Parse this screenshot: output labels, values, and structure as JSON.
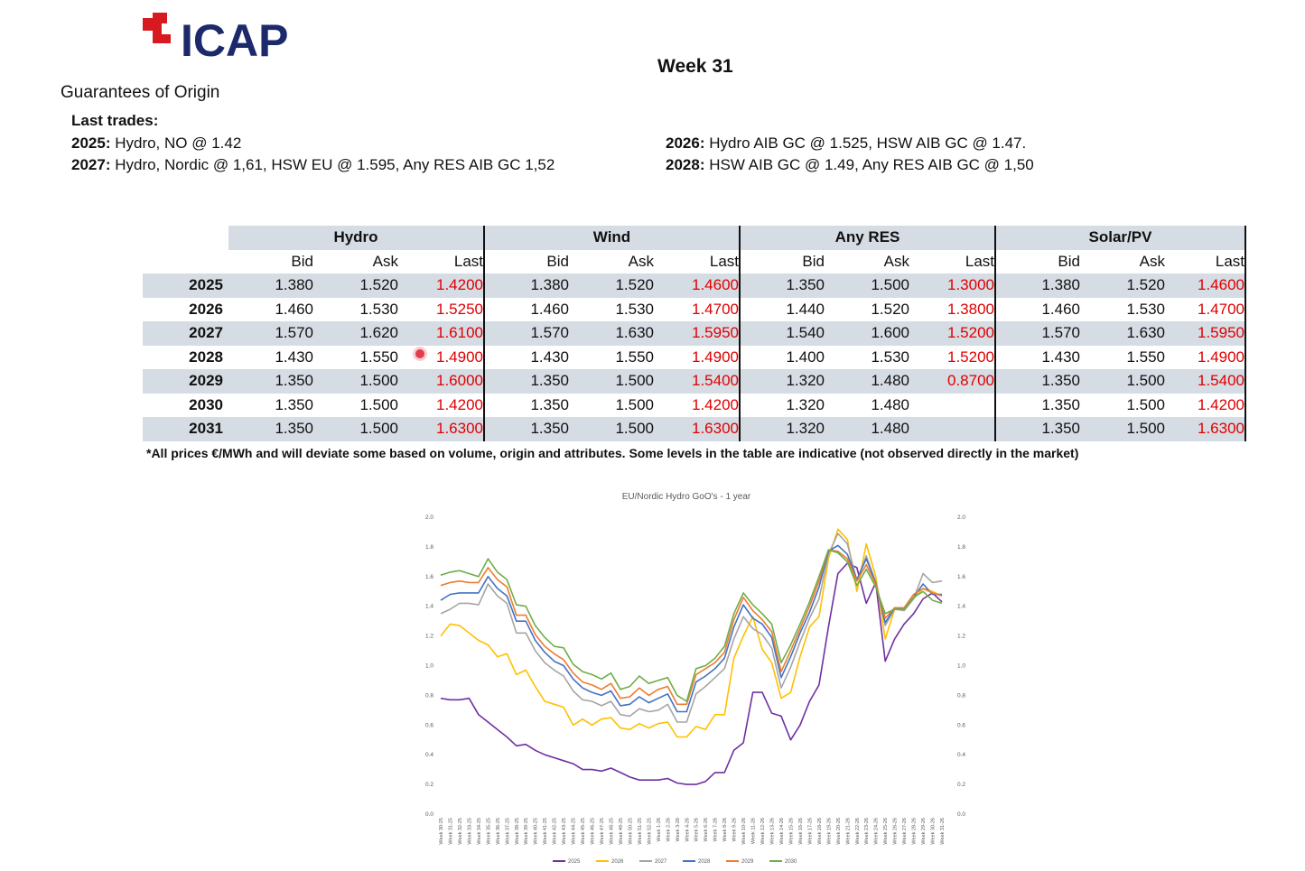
{
  "logo": {
    "text": "ICAP",
    "color": "#1c2a6b",
    "mark_color": "#d71920"
  },
  "header": {
    "week": "Week 31"
  },
  "section_title": "Guarantees of Origin",
  "last_trades": {
    "heading": "Last trades:",
    "items": [
      {
        "year": "2025:",
        "text": " Hydro, NO @ 1.42"
      },
      {
        "year": "2026:",
        "text": " Hydro AIB GC @ 1.525, HSW AIB GC @ 1.47."
      },
      {
        "year": "2027:",
        "text": " Hydro, Nordic @ 1,61, HSW EU @ 1.595, Any RES AIB GC 1,52"
      },
      {
        "year": "2028:",
        "text": " HSW AIB GC @ 1.49, Any RES AIB GC @ 1,50"
      }
    ]
  },
  "table": {
    "groups": [
      "Hydro",
      "Wind",
      "Any RES",
      "Solar/PV"
    ],
    "subheaders": [
      "Bid",
      "Ask",
      "Last"
    ],
    "rows": [
      {
        "year": "2025",
        "vals": [
          "1.380",
          "1.520",
          "1.4200",
          "1.380",
          "1.520",
          "1.4600",
          "1.350",
          "1.500",
          "1.3000",
          "1.380",
          "1.520",
          "1.4600"
        ]
      },
      {
        "year": "2026",
        "vals": [
          "1.460",
          "1.530",
          "1.5250",
          "1.460",
          "1.530",
          "1.4700",
          "1.440",
          "1.520",
          "1.3800",
          "1.460",
          "1.530",
          "1.4700"
        ]
      },
      {
        "year": "2027",
        "vals": [
          "1.570",
          "1.620",
          "1.6100",
          "1.570",
          "1.630",
          "1.5950",
          "1.540",
          "1.600",
          "1.5200",
          "1.570",
          "1.630",
          "1.5950"
        ]
      },
      {
        "year": "2028",
        "vals": [
          "1.430",
          "1.550",
          "1.4900",
          "1.430",
          "1.550",
          "1.4900",
          "1.400",
          "1.530",
          "1.5200",
          "1.430",
          "1.550",
          "1.4900"
        ]
      },
      {
        "year": "2029",
        "vals": [
          "1.350",
          "1.500",
          "1.6000",
          "1.350",
          "1.500",
          "1.5400",
          "1.320",
          "1.480",
          "0.8700",
          "1.350",
          "1.500",
          "1.5400"
        ]
      },
      {
        "year": "2030",
        "vals": [
          "1.350",
          "1.500",
          "1.4200",
          "1.350",
          "1.500",
          "1.4200",
          "1.320",
          "1.480",
          "",
          "1.350",
          "1.500",
          "1.4200"
        ]
      },
      {
        "year": "2031",
        "vals": [
          "1.350",
          "1.500",
          "1.6300",
          "1.350",
          "1.500",
          "1.6300",
          "1.320",
          "1.480",
          "",
          "1.350",
          "1.500",
          "1.6300"
        ]
      }
    ]
  },
  "footnote": "*All prices €/MWh and will deviate some based on volume, origin and attributes. Some levels in the table are indicative (not observed directly in the market)",
  "chart_data": {
    "type": "line",
    "title": "EU/Nordic Hydro GoO's - 1 year",
    "ylim": [
      0.0,
      2.0
    ],
    "yticks": [
      "0.0",
      "0.2",
      "0.4",
      "0.6",
      "0.8",
      "1.0",
      "1.2",
      "1.4",
      "1.6",
      "1.8",
      "2.0"
    ],
    "grid": false,
    "legend": "bottom",
    "x": [
      "Week 30-25",
      "Week 31-25",
      "Week 32-25",
      "Week 33-25",
      "Week 34-25",
      "Week 35-25",
      "Week 36-25",
      "Week 37-25",
      "Week 38-25",
      "Week 39-25",
      "Week 40-25",
      "Week 41-25",
      "Week 42-25",
      "Week 43-25",
      "Week 44-25",
      "Week 45-25",
      "Week 46-25",
      "Week 47-25",
      "Week 48-25",
      "Week 49-25",
      "Week 50-25",
      "Week 51-25",
      "Week 52-25",
      "Week 1-26",
      "Week 2-26",
      "Week 3-26",
      "Week 4-26",
      "Week 5-26",
      "Week 6-26",
      "Week 7-26",
      "Week 8-26",
      "Week 9-26",
      "Week 10-26",
      "Week 11-26",
      "Week 12-26",
      "Week 13-26",
      "Week 14-26",
      "Week 15-26",
      "Week 16-26",
      "Week 17-26",
      "Week 18-26",
      "Week 19-26",
      "Week 20-26",
      "Week 21-26",
      "Week 22-26",
      "Week 23-26",
      "Week 24-26",
      "Week 25-26",
      "Week 26-26",
      "Week 27-26",
      "Week 28-26",
      "Week 29-26",
      "Week 30-26",
      "Week 31-26"
    ],
    "series": [
      {
        "name": "2025",
        "color": "#7030a0",
        "values": [
          0.78,
          0.77,
          0.77,
          0.78,
          0.67,
          0.62,
          0.57,
          0.52,
          0.46,
          0.47,
          0.43,
          0.4,
          0.38,
          0.36,
          0.34,
          0.3,
          0.3,
          0.29,
          0.31,
          0.28,
          0.25,
          0.23,
          0.23,
          0.23,
          0.24,
          0.21,
          0.2,
          0.2,
          0.22,
          0.28,
          0.28,
          0.43,
          0.48,
          0.82,
          0.82,
          0.68,
          0.66,
          0.5,
          0.6,
          0.76,
          0.87,
          1.26,
          1.62,
          1.69,
          1.66,
          1.42,
          1.56,
          1.03,
          1.18,
          1.28,
          1.35,
          1.45,
          1.49,
          1.43
        ]
      },
      {
        "name": "2026",
        "color": "#ffc000",
        "values": [
          1.2,
          1.28,
          1.27,
          1.22,
          1.17,
          1.14,
          1.06,
          1.08,
          0.94,
          0.97,
          0.86,
          0.76,
          0.74,
          0.72,
          0.6,
          0.64,
          0.6,
          0.64,
          0.65,
          0.58,
          0.57,
          0.61,
          0.58,
          0.61,
          0.62,
          0.52,
          0.52,
          0.59,
          0.57,
          0.67,
          0.67,
          1.05,
          1.2,
          1.33,
          1.11,
          1.02,
          0.78,
          0.82,
          1.06,
          1.26,
          1.33,
          1.72,
          1.92,
          1.85,
          1.5,
          1.82,
          1.6,
          1.18,
          1.38,
          1.38,
          1.45,
          1.52,
          1.5,
          1.47
        ]
      },
      {
        "name": "2027",
        "color": "#a5a5a5",
        "values": [
          1.35,
          1.38,
          1.42,
          1.42,
          1.41,
          1.55,
          1.47,
          1.42,
          1.22,
          1.22,
          1.1,
          1.02,
          0.97,
          0.93,
          0.83,
          0.77,
          0.76,
          0.73,
          0.76,
          0.67,
          0.66,
          0.71,
          0.69,
          0.7,
          0.74,
          0.62,
          0.62,
          0.81,
          0.86,
          0.92,
          0.98,
          1.18,
          1.33,
          1.25,
          1.21,
          1.12,
          0.85,
          0.99,
          1.16,
          1.32,
          1.45,
          1.75,
          1.89,
          1.82,
          1.57,
          1.74,
          1.56,
          1.27,
          1.38,
          1.37,
          1.45,
          1.62,
          1.56,
          1.57
        ]
      },
      {
        "name": "2028",
        "color": "#4472c4",
        "values": [
          1.44,
          1.48,
          1.49,
          1.49,
          1.49,
          1.6,
          1.52,
          1.47,
          1.3,
          1.3,
          1.17,
          1.09,
          1.03,
          1.0,
          0.91,
          0.85,
          0.82,
          0.8,
          0.83,
          0.73,
          0.74,
          0.79,
          0.75,
          0.78,
          0.81,
          0.69,
          0.69,
          0.89,
          0.93,
          0.98,
          1.05,
          1.26,
          1.41,
          1.32,
          1.28,
          1.19,
          0.92,
          1.06,
          1.22,
          1.36,
          1.53,
          1.77,
          1.81,
          1.75,
          1.58,
          1.72,
          1.56,
          1.29,
          1.39,
          1.38,
          1.46,
          1.55,
          1.48,
          1.48
        ]
      },
      {
        "name": "2029",
        "color": "#ed7d31",
        "values": [
          1.54,
          1.56,
          1.57,
          1.56,
          1.56,
          1.66,
          1.58,
          1.53,
          1.34,
          1.34,
          1.21,
          1.13,
          1.08,
          1.04,
          0.95,
          0.89,
          0.87,
          0.84,
          0.88,
          0.78,
          0.79,
          0.85,
          0.8,
          0.84,
          0.86,
          0.74,
          0.74,
          0.94,
          0.98,
          1.02,
          1.09,
          1.31,
          1.46,
          1.37,
          1.31,
          1.23,
          0.96,
          1.1,
          1.25,
          1.4,
          1.57,
          1.78,
          1.77,
          1.72,
          1.57,
          1.68,
          1.55,
          1.32,
          1.39,
          1.39,
          1.48,
          1.52,
          1.49,
          1.47
        ]
      },
      {
        "name": "2030",
        "color": "#70ad47",
        "values": [
          1.61,
          1.63,
          1.64,
          1.62,
          1.6,
          1.72,
          1.63,
          1.58,
          1.41,
          1.4,
          1.27,
          1.19,
          1.13,
          1.12,
          1.01,
          0.96,
          0.94,
          0.91,
          0.95,
          0.84,
          0.86,
          0.93,
          0.88,
          0.9,
          0.92,
          0.8,
          0.76,
          0.98,
          1.0,
          1.05,
          1.13,
          1.35,
          1.49,
          1.41,
          1.35,
          1.28,
          1.02,
          1.14,
          1.28,
          1.43,
          1.6,
          1.78,
          1.76,
          1.7,
          1.54,
          1.65,
          1.53,
          1.35,
          1.38,
          1.38,
          1.46,
          1.5,
          1.44,
          1.42
        ]
      }
    ]
  }
}
